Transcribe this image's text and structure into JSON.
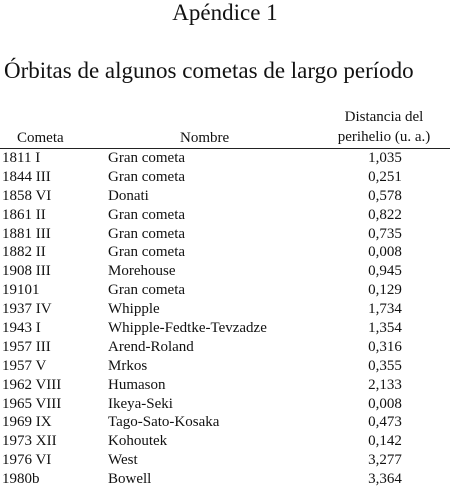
{
  "appendix_label": "Apéndice 1",
  "section_title": "Órbitas de algunos cometas de largo período",
  "table": {
    "headers": {
      "comet": "Cometa",
      "name": "Nombre",
      "perihelion_line1": "Distancia del",
      "perihelion_line2": "perihelio (u. a.)"
    },
    "rows": [
      {
        "comet": "1811 I",
        "name": "Gran cometa",
        "perihelion": "1,035"
      },
      {
        "comet": "1844 III",
        "name": "Gran cometa",
        "perihelion": "0,251"
      },
      {
        "comet": "1858 VI",
        "name": "Donati",
        "perihelion": "0,578"
      },
      {
        "comet": "1861 II",
        "name": "Gran cometa",
        "perihelion": "0,822"
      },
      {
        "comet": "1881 III",
        "name": "Gran cometa",
        "perihelion": "0,735"
      },
      {
        "comet": "1882 II",
        "name": "Gran cometa",
        "perihelion": "0,008"
      },
      {
        "comet": "1908 III",
        "name": "Morehouse",
        "perihelion": "0,945"
      },
      {
        "comet": "19101",
        "name": "Gran cometa",
        "perihelion": "0,129"
      },
      {
        "comet": "1937 IV",
        "name": "Whipple",
        "perihelion": "1,734"
      },
      {
        "comet": "1943 I",
        "name": "Whipple-Fedtke-Tevzadze",
        "perihelion": "1,354"
      },
      {
        "comet": "1957 III",
        "name": "Arend-Roland",
        "perihelion": "0,316"
      },
      {
        "comet": "1957 V",
        "name": "Mrkos",
        "perihelion": "0,355"
      },
      {
        "comet": "1962 VIII",
        "name": "Humason",
        "perihelion": "2,133"
      },
      {
        "comet": "1965 VIII",
        "name": "Ikeya-Seki",
        "perihelion": "0,008"
      },
      {
        "comet": "1969 IX",
        "name": "Tago-Sato-Kosaka",
        "perihelion": "0,473"
      },
      {
        "comet": "1973 XII",
        "name": "Kohoutek",
        "perihelion": "0,142"
      },
      {
        "comet": "1976 VI",
        "name": "West",
        "perihelion": "3,277"
      },
      {
        "comet": "1980b",
        "name": "Bowell",
        "perihelion": "3,364"
      }
    ]
  }
}
